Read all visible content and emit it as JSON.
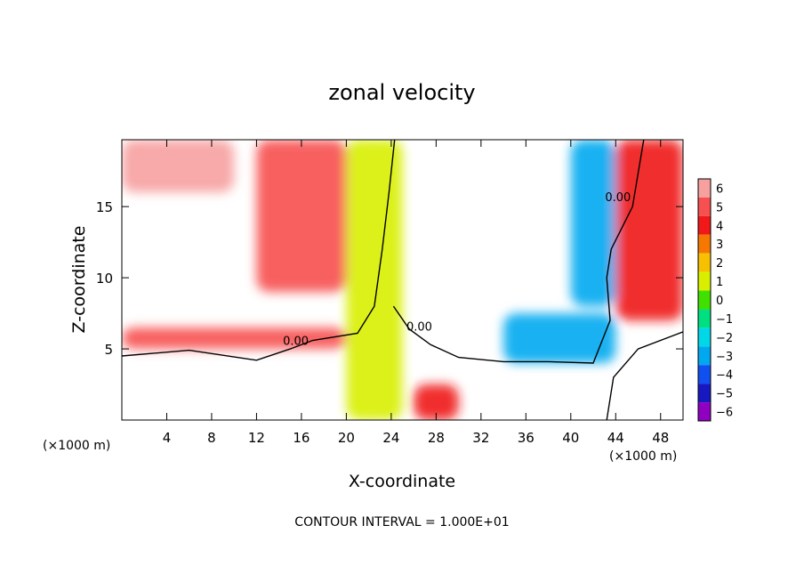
{
  "chart_data": {
    "type": "heatmap",
    "title": "zonal velocity",
    "xlabel": "X-coordinate",
    "ylabel": "Z-coordinate",
    "x_unit": "(×1000 m)",
    "x_unit_right": "(×1000 m)",
    "footer": "CONTOUR INTERVAL = 1.000E+01",
    "xlim": [
      0,
      50
    ],
    "ylim": [
      0,
      19.7
    ],
    "x_ticks": [
      4,
      8,
      12,
      16,
      20,
      24,
      28,
      32,
      36,
      40,
      44,
      48
    ],
    "x_tick_labels": [
      "4",
      "8",
      "12",
      "16",
      "20",
      "24",
      "28",
      "32",
      "36",
      "40",
      "44",
      "48"
    ],
    "y_ticks": [
      5,
      10,
      15
    ],
    "y_tick_labels": [
      "5",
      "10",
      "15"
    ],
    "colorbar": {
      "levels": [
        6,
        5,
        4,
        3,
        2,
        1,
        0,
        -1,
        -2,
        -3,
        -4,
        -5,
        -6
      ],
      "labels": [
        "6",
        "5",
        "4",
        "3",
        "2",
        "1",
        "0",
        "−1",
        "−2",
        "−3",
        "−4",
        "−5",
        "−6"
      ],
      "colors": [
        "#f7a0a0",
        "#f75050",
        "#f01818",
        "#f77800",
        "#f7c000",
        "#d8f000",
        "#40e000",
        "#00e080",
        "#00d8e8",
        "#00a8f0",
        "#1050f0",
        "#1818c0",
        "#9000c0"
      ]
    },
    "contour_labels": [
      {
        "text": "0.00",
        "x": 15.5,
        "y": 5.3
      },
      {
        "text": "0.00",
        "x": 26.5,
        "y": 6.3
      },
      {
        "text": "0.00",
        "x": 44.2,
        "y": 15.4
      }
    ],
    "zero_contours": [
      [
        [
          0,
          4.5
        ],
        [
          6,
          4.9
        ],
        [
          12,
          4.2
        ],
        [
          15,
          5.0
        ],
        [
          17,
          5.6
        ],
        [
          21,
          6.1
        ],
        [
          22.5,
          8.0
        ],
        [
          23.2,
          12
        ],
        [
          23.8,
          16
        ],
        [
          24.3,
          19.7
        ]
      ],
      [
        [
          24.2,
          8.0
        ],
        [
          25.6,
          6.4
        ],
        [
          27.5,
          5.3
        ],
        [
          30,
          4.4
        ],
        [
          34,
          4.1
        ],
        [
          38,
          4.1
        ],
        [
          42,
          4.0
        ],
        [
          43.5,
          7
        ],
        [
          43.2,
          10
        ],
        [
          43.6,
          12
        ],
        [
          45.5,
          15
        ],
        [
          46.5,
          19.7
        ]
      ],
      [
        [
          43.2,
          0
        ],
        [
          43.8,
          3
        ],
        [
          46,
          5
        ],
        [
          50,
          6.2
        ]
      ]
    ],
    "field_regions": [
      {
        "shape": "band",
        "x": [
          0,
          20
        ],
        "y": [
          5,
          6.5
        ],
        "value": 4.5
      },
      {
        "shape": "band",
        "x": [
          20,
          25
        ],
        "y": [
          0,
          19.7
        ],
        "value": 0.5
      },
      {
        "shape": "band",
        "x": [
          34,
          44
        ],
        "y": [
          4,
          7.5
        ],
        "value": -3.5
      },
      {
        "shape": "band",
        "x": [
          40,
          44
        ],
        "y": [
          8,
          19.7
        ],
        "value": -3.0
      },
      {
        "shape": "band",
        "x": [
          12,
          20
        ],
        "y": [
          9,
          19.7
        ],
        "value": 4.5
      },
      {
        "shape": "band",
        "x": [
          0,
          10
        ],
        "y": [
          16,
          19.7
        ],
        "value": 5.5
      },
      {
        "shape": "band",
        "x": [
          44,
          50
        ],
        "y": [
          7,
          19.7
        ],
        "value": 3.5
      },
      {
        "shape": "band",
        "x": [
          26,
          30
        ],
        "y": [
          0,
          2.5
        ],
        "value": 4.0
      }
    ]
  }
}
